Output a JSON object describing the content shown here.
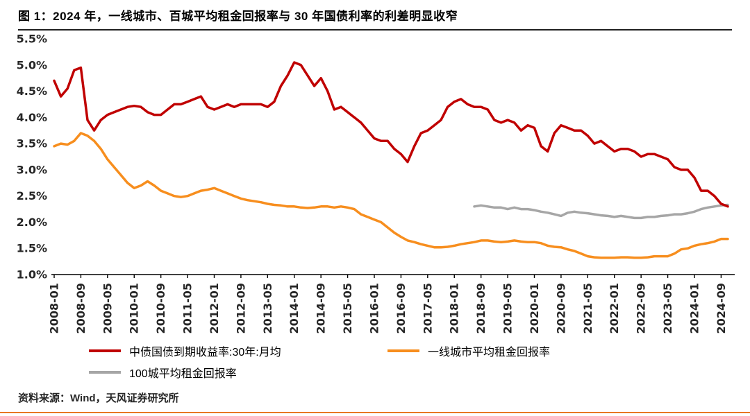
{
  "header": {
    "title": "图 1：2024 年，一线城市、百城平均租金回报率与 30 年国债利率的利差明显收窄"
  },
  "footer": {
    "source": "资料来源：Wind，天风证券研究所"
  },
  "colors": {
    "red": "#C00000",
    "orange": "#F78E1E",
    "gray": "#A6A6A6",
    "axis": "#262626",
    "divider": "#1F1F1F",
    "accent": "#E87722"
  },
  "chart_data": {
    "type": "line",
    "title": "图 1：2024 年，一线城市、百城平均租金回报率与 30 年国债利率的利差明显收窄",
    "grid": false,
    "legend_position": "bottom",
    "ylim": [
      1.0,
      5.5
    ],
    "ytick_step": 0.5,
    "ytick_format": "percent",
    "x_unit": "months since 2008-01",
    "x_max_index": 202,
    "xtick_indices": [
      0,
      8,
      16,
      24,
      32,
      40,
      48,
      56,
      64,
      72,
      80,
      88,
      96,
      104,
      112,
      120,
      128,
      136,
      144,
      152,
      160,
      168,
      176,
      184,
      192,
      200
    ],
    "xtick_labels": [
      "2008-01",
      "2008-09",
      "2009-05",
      "2010-01",
      "2010-09",
      "2011-05",
      "2012-01",
      "2012-09",
      "2013-05",
      "2014-01",
      "2014-09",
      "2015-05",
      "2016-01",
      "2016-09",
      "2017-05",
      "2018-01",
      "2018-09",
      "2019-05",
      "2020-01",
      "2020-09",
      "2021-05",
      "2022-01",
      "2022-09",
      "2023-05",
      "2024-01",
      "2024-09"
    ],
    "series": [
      {
        "name": "中债国债到期收益率:30年:月均",
        "color": "#C00000",
        "width": 3.5,
        "start_index": 0,
        "step": 2,
        "values": [
          4.7,
          4.4,
          4.55,
          4.9,
          4.95,
          3.95,
          3.75,
          3.95,
          4.05,
          4.1,
          4.15,
          4.2,
          4.22,
          4.2,
          4.1,
          4.05,
          4.05,
          4.15,
          4.25,
          4.25,
          4.3,
          4.35,
          4.4,
          4.2,
          4.15,
          4.2,
          4.25,
          4.2,
          4.25,
          4.25,
          4.25,
          4.25,
          4.2,
          4.3,
          4.6,
          4.8,
          5.05,
          5.0,
          4.8,
          4.6,
          4.75,
          4.5,
          4.15,
          4.2,
          4.1,
          4.0,
          3.9,
          3.75,
          3.6,
          3.55,
          3.55,
          3.4,
          3.3,
          3.15,
          3.45,
          3.7,
          3.75,
          3.85,
          3.95,
          4.2,
          4.3,
          4.35,
          4.25,
          4.2,
          4.2,
          4.15,
          3.95,
          3.9,
          3.95,
          3.9,
          3.75,
          3.85,
          3.8,
          3.45,
          3.35,
          3.7,
          3.85,
          3.8,
          3.75,
          3.75,
          3.65,
          3.5,
          3.55,
          3.45,
          3.35,
          3.4,
          3.4,
          3.35,
          3.25,
          3.3,
          3.3,
          3.25,
          3.2,
          3.05,
          3.0,
          3.0,
          2.85,
          2.6,
          2.6,
          2.5,
          2.35,
          2.3
        ]
      },
      {
        "name": "一线城市平均租金回报率",
        "color": "#F78E1E",
        "width": 3.5,
        "start_index": 0,
        "step": 2,
        "values": [
          3.45,
          3.5,
          3.48,
          3.55,
          3.7,
          3.65,
          3.55,
          3.4,
          3.2,
          3.05,
          2.9,
          2.75,
          2.65,
          2.7,
          2.78,
          2.7,
          2.6,
          2.55,
          2.5,
          2.48,
          2.5,
          2.55,
          2.6,
          2.62,
          2.65,
          2.6,
          2.55,
          2.5,
          2.45,
          2.42,
          2.4,
          2.38,
          2.35,
          2.33,
          2.32,
          2.3,
          2.3,
          2.28,
          2.27,
          2.28,
          2.3,
          2.3,
          2.28,
          2.3,
          2.28,
          2.25,
          2.15,
          2.1,
          2.05,
          2.0,
          1.9,
          1.8,
          1.72,
          1.65,
          1.62,
          1.58,
          1.55,
          1.52,
          1.52,
          1.53,
          1.55,
          1.58,
          1.6,
          1.62,
          1.65,
          1.65,
          1.63,
          1.62,
          1.63,
          1.65,
          1.63,
          1.62,
          1.62,
          1.6,
          1.55,
          1.53,
          1.52,
          1.48,
          1.45,
          1.4,
          1.35,
          1.33,
          1.32,
          1.32,
          1.32,
          1.33,
          1.33,
          1.32,
          1.32,
          1.33,
          1.35,
          1.35,
          1.35,
          1.4,
          1.48,
          1.5,
          1.55,
          1.58,
          1.6,
          1.63,
          1.68,
          1.68
        ]
      },
      {
        "name": "100城平均租金回报率",
        "color": "#A6A6A6",
        "width": 3.5,
        "start_index": 126,
        "step": 2,
        "values": [
          2.3,
          2.32,
          2.3,
          2.28,
          2.28,
          2.25,
          2.28,
          2.25,
          2.25,
          2.23,
          2.2,
          2.18,
          2.15,
          2.12,
          2.18,
          2.2,
          2.18,
          2.17,
          2.15,
          2.13,
          2.12,
          2.1,
          2.12,
          2.1,
          2.08,
          2.08,
          2.1,
          2.1,
          2.12,
          2.13,
          2.15,
          2.15,
          2.17,
          2.2,
          2.25,
          2.28,
          2.3,
          2.32,
          2.33
        ]
      }
    ]
  }
}
